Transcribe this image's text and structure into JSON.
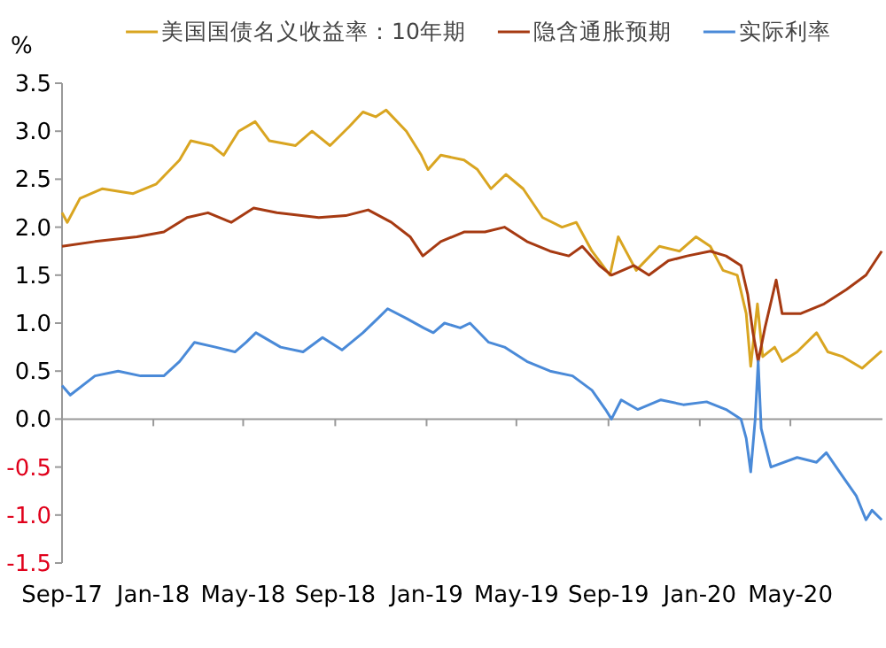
{
  "chart_data": {
    "type": "line",
    "ylabel": "%",
    "legend": "top",
    "xlim": [
      "2017-09-01",
      "2020-09-01"
    ],
    "ylim": [
      -1.5,
      3.5
    ],
    "xticks": [
      {
        "value": "2017-09-01",
        "label": "Sep-17"
      },
      {
        "value": "2018-01-01",
        "label": "Jan-18"
      },
      {
        "value": "2018-05-01",
        "label": "May-18"
      },
      {
        "value": "2018-09-01",
        "label": "Sep-18"
      },
      {
        "value": "2019-01-01",
        "label": "Jan-19"
      },
      {
        "value": "2019-05-01",
        "label": "May-19"
      },
      {
        "value": "2019-09-01",
        "label": "Sep-19"
      },
      {
        "value": "2020-01-01",
        "label": "Jan-20"
      },
      {
        "value": "2020-05-01",
        "label": "May-20"
      }
    ],
    "yticks": [
      {
        "value": 3.5,
        "label": "3.5"
      },
      {
        "value": 3,
        "label": "3.0"
      },
      {
        "value": 2.5,
        "label": "2.5"
      },
      {
        "value": 2,
        "label": "2.0"
      },
      {
        "value": 1.5,
        "label": "1.5"
      },
      {
        "value": 1,
        "label": "1.0"
      },
      {
        "value": 0.5,
        "label": "0.5"
      },
      {
        "value": 0,
        "label": "0.0"
      },
      {
        "value": -0.5,
        "label": "-0.5"
      },
      {
        "value": -1,
        "label": "-1.0"
      },
      {
        "value": -1.5,
        "label": "-1.5"
      }
    ],
    "series": [
      {
        "name": "美国国债名义收益率：10年期",
        "color": "#d9a521",
        "x": [
          "2017-09-01",
          "2017-09-08",
          "2017-09-25",
          "2017-10-25",
          "2017-12-05",
          "2018-01-05",
          "2018-02-05",
          "2018-02-20",
          "2018-03-20",
          "2018-04-05",
          "2018-04-25",
          "2018-05-17",
          "2018-06-05",
          "2018-07-10",
          "2018-08-01",
          "2018-08-25",
          "2018-09-20",
          "2018-10-08",
          "2018-10-25",
          "2018-11-08",
          "2018-12-05",
          "2018-12-25",
          "2019-01-03",
          "2019-01-20",
          "2019-02-20",
          "2019-03-10",
          "2019-03-28",
          "2019-04-17",
          "2019-05-10",
          "2019-06-05",
          "2019-07-01",
          "2019-07-20",
          "2019-08-10",
          "2019-09-03",
          "2019-09-14",
          "2019-10-08",
          "2019-11-08",
          "2019-12-05",
          "2019-12-27",
          "2020-01-15",
          "2020-02-01",
          "2020-02-20",
          "2020-03-03",
          "2020-03-09",
          "2020-03-18",
          "2020-03-25",
          "2020-04-10",
          "2020-04-20",
          "2020-05-10",
          "2020-06-05",
          "2020-06-20",
          "2020-07-10",
          "2020-08-05",
          "2020-08-31"
        ],
        "values": [
          2.15,
          2.05,
          2.3,
          2.4,
          2.35,
          2.45,
          2.7,
          2.9,
          2.85,
          2.75,
          3.0,
          3.1,
          2.9,
          2.85,
          3.0,
          2.85,
          3.05,
          3.2,
          3.15,
          3.22,
          3.0,
          2.75,
          2.6,
          2.75,
          2.7,
          2.6,
          2.4,
          2.55,
          2.4,
          2.1,
          2.0,
          2.05,
          1.75,
          1.5,
          1.9,
          1.55,
          1.8,
          1.75,
          1.9,
          1.8,
          1.55,
          1.5,
          1.1,
          0.55,
          1.2,
          0.65,
          0.75,
          0.6,
          0.7,
          0.9,
          0.7,
          0.65,
          0.53,
          0.71
        ]
      },
      {
        "name": "隐含通胀预期",
        "color": "#a63a12",
        "x": [
          "2017-09-01",
          "2017-10-15",
          "2017-12-10",
          "2018-01-15",
          "2018-02-15",
          "2018-03-15",
          "2018-04-15",
          "2018-05-15",
          "2018-06-15",
          "2018-08-10",
          "2018-09-15",
          "2018-10-15",
          "2018-11-15",
          "2018-12-10",
          "2018-12-27",
          "2019-01-20",
          "2019-02-20",
          "2019-03-20",
          "2019-04-15",
          "2019-05-15",
          "2019-06-15",
          "2019-07-10",
          "2019-07-28",
          "2019-08-20",
          "2019-09-05",
          "2019-10-05",
          "2019-10-25",
          "2019-11-20",
          "2019-12-15",
          "2020-01-15",
          "2020-02-05",
          "2020-02-25",
          "2020-03-05",
          "2020-03-12",
          "2020-03-19",
          "2020-03-28",
          "2020-04-12",
          "2020-04-20",
          "2020-05-15",
          "2020-06-15",
          "2020-07-15",
          "2020-08-10",
          "2020-08-31"
        ],
        "values": [
          1.8,
          1.85,
          1.9,
          1.95,
          2.1,
          2.15,
          2.05,
          2.2,
          2.15,
          2.1,
          2.12,
          2.18,
          2.05,
          1.9,
          1.7,
          1.85,
          1.95,
          1.95,
          2.0,
          1.85,
          1.75,
          1.7,
          1.8,
          1.6,
          1.5,
          1.6,
          1.5,
          1.65,
          1.7,
          1.75,
          1.7,
          1.6,
          1.3,
          0.9,
          0.6,
          0.95,
          1.45,
          1.1,
          1.1,
          1.2,
          1.35,
          1.5,
          1.75
        ]
      },
      {
        "name": "实际利率",
        "color": "#4a8ad8",
        "x": [
          "2017-09-01",
          "2017-09-12",
          "2017-10-15",
          "2017-11-15",
          "2017-12-15",
          "2018-01-15",
          "2018-02-05",
          "2018-02-25",
          "2018-03-25",
          "2018-04-20",
          "2018-05-05",
          "2018-05-18",
          "2018-06-20",
          "2018-07-20",
          "2018-08-15",
          "2018-09-10",
          "2018-10-08",
          "2018-10-28",
          "2018-11-10",
          "2018-12-05",
          "2018-12-28",
          "2019-01-10",
          "2019-01-25",
          "2019-02-15",
          "2019-02-28",
          "2019-03-25",
          "2019-04-15",
          "2019-05-15",
          "2019-06-15",
          "2019-07-15",
          "2019-08-10",
          "2019-08-28",
          "2019-09-05",
          "2019-09-18",
          "2019-10-10",
          "2019-11-10",
          "2019-12-10",
          "2020-01-10",
          "2020-02-05",
          "2020-02-25",
          "2020-03-03",
          "2020-03-09",
          "2020-03-15",
          "2020-03-19",
          "2020-03-23",
          "2020-04-05",
          "2020-05-10",
          "2020-06-05",
          "2020-06-18",
          "2020-07-10",
          "2020-07-28",
          "2020-08-10",
          "2020-08-18",
          "2020-08-31"
        ],
        "values": [
          0.35,
          0.25,
          0.45,
          0.5,
          0.45,
          0.45,
          0.6,
          0.8,
          0.75,
          0.7,
          0.8,
          0.9,
          0.75,
          0.7,
          0.85,
          0.72,
          0.9,
          1.05,
          1.15,
          1.05,
          0.95,
          0.9,
          1.0,
          0.95,
          1.0,
          0.8,
          0.75,
          0.6,
          0.5,
          0.45,
          0.3,
          0.1,
          0.0,
          0.2,
          0.1,
          0.2,
          0.15,
          0.18,
          0.1,
          0.0,
          -0.2,
          -0.55,
          0.0,
          0.6,
          -0.1,
          -0.5,
          -0.4,
          -0.45,
          -0.35,
          -0.6,
          -0.8,
          -1.05,
          -0.95,
          -1.05
        ]
      }
    ]
  }
}
